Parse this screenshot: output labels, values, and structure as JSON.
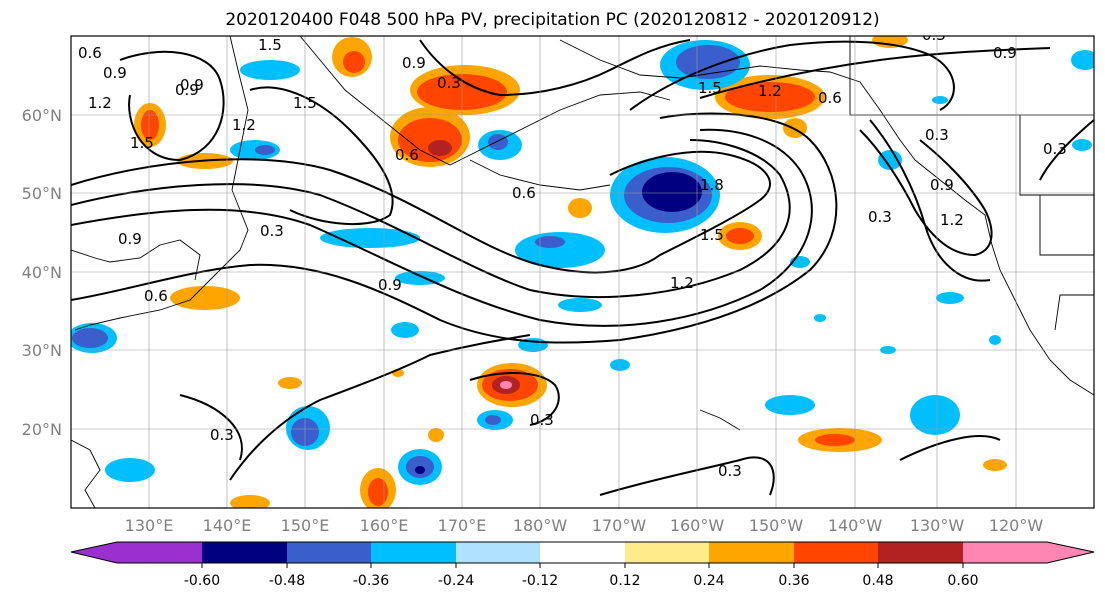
{
  "title": "2020120400 F048 500 hPa PV, precipitation PC (2020120812 - 2020120912)",
  "map": {
    "lat_labels": [
      "60°N",
      "50°N",
      "40°N",
      "30°N",
      "20°N"
    ],
    "lon_labels": [
      "130°E",
      "140°E",
      "150°E",
      "160°E",
      "170°E",
      "180°W",
      "170°W",
      "160°W",
      "150°W",
      "140°W",
      "130°W",
      "120°W"
    ],
    "contour_labels": [
      "0.6",
      "0.9",
      "1.5",
      "1.2",
      "0.9",
      "0.3",
      "1.5",
      "1.2",
      "0.6",
      "1.5",
      "0.9",
      "0.3",
      "1.5",
      "1.2",
      "0.6",
      "0.9",
      "0.3",
      "0.6",
      "0.9",
      "0.6",
      "1.8",
      "1.5",
      "0.3",
      "0.9",
      "1.2",
      "0.9",
      "1.2",
      "0.3",
      "0.3",
      "0.3",
      "0.9",
      "0.3",
      "0.3"
    ]
  },
  "colorbar": {
    "colors": [
      "#9b30d0",
      "#000080",
      "#3a5fcd",
      "#00bfff",
      "#b0e2ff",
      "#ffffff",
      "#ffeb8a",
      "#ffa500",
      "#ff4500",
      "#b22222",
      "#ff85b3"
    ],
    "tick_labels": [
      "-0.60",
      "-0.48",
      "-0.36",
      "-0.24",
      "-0.12",
      "0.12",
      "0.24",
      "0.36",
      "0.48",
      "0.60"
    ]
  }
}
